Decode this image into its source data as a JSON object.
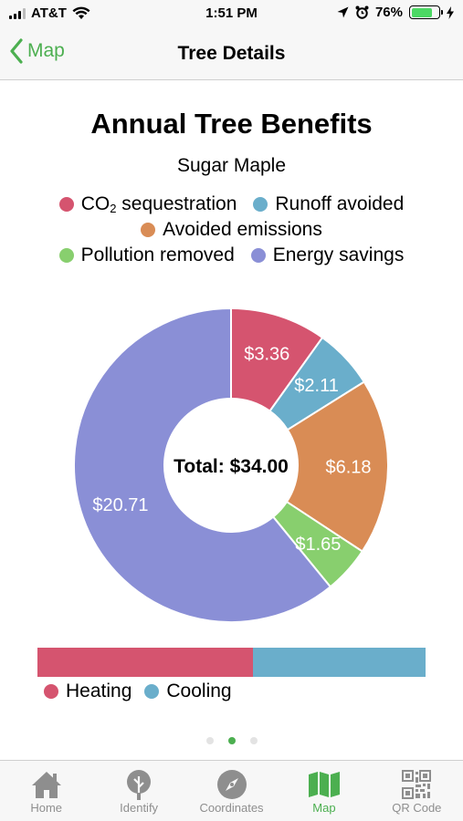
{
  "status_bar": {
    "carrier": "AT&T",
    "time": "1:51 PM",
    "battery_percent": "76%",
    "battery_level": 0.76
  },
  "nav": {
    "back_label": "Map",
    "title": "Tree Details"
  },
  "colors": {
    "accent": "#4caf50",
    "co2": "#d5546f",
    "runoff": "#6aaecb",
    "emissions": "#d98c55",
    "pollution": "#88cf6e",
    "energy": "#8a8fd6",
    "heating": "#d5546f",
    "cooling": "#6aaecb"
  },
  "chart_data": {
    "type": "pie",
    "title": "Annual Tree Benefits",
    "subtitle": "Sugar Maple",
    "center_label": "Total: $34.00",
    "categories": [
      "CO2 sequestration",
      "Runoff avoided",
      "Avoided emissions",
      "Pollution removed",
      "Energy savings"
    ],
    "values": [
      3.36,
      2.11,
      6.18,
      1.65,
      20.71
    ],
    "labels": [
      "$3.36",
      "$2.11",
      "$6.18",
      "$1.65",
      "$20.71"
    ],
    "colors": [
      "#d5546f",
      "#6aaecb",
      "#d98c55",
      "#88cf6e",
      "#8a8fd6"
    ]
  },
  "legend": {
    "co2_prefix": "CO",
    "co2_sub": "2",
    "co2_suffix": " sequestration",
    "runoff": "Runoff avoided",
    "emissions": "Avoided emissions",
    "pollution": "Pollution removed",
    "energy": "Energy savings"
  },
  "energy_split": {
    "heating_label": "Heating",
    "cooling_label": "Cooling",
    "heating_fraction": 0.555
  },
  "pager": {
    "count": 3,
    "active_index": 1
  },
  "tabs": [
    {
      "label": "Home",
      "icon": "home-icon"
    },
    {
      "label": "Identify",
      "icon": "tree-icon"
    },
    {
      "label": "Coordinates",
      "icon": "compass-icon"
    },
    {
      "label": "Map",
      "icon": "map-icon",
      "active": true
    },
    {
      "label": "QR Code",
      "icon": "qr-code-icon"
    }
  ]
}
